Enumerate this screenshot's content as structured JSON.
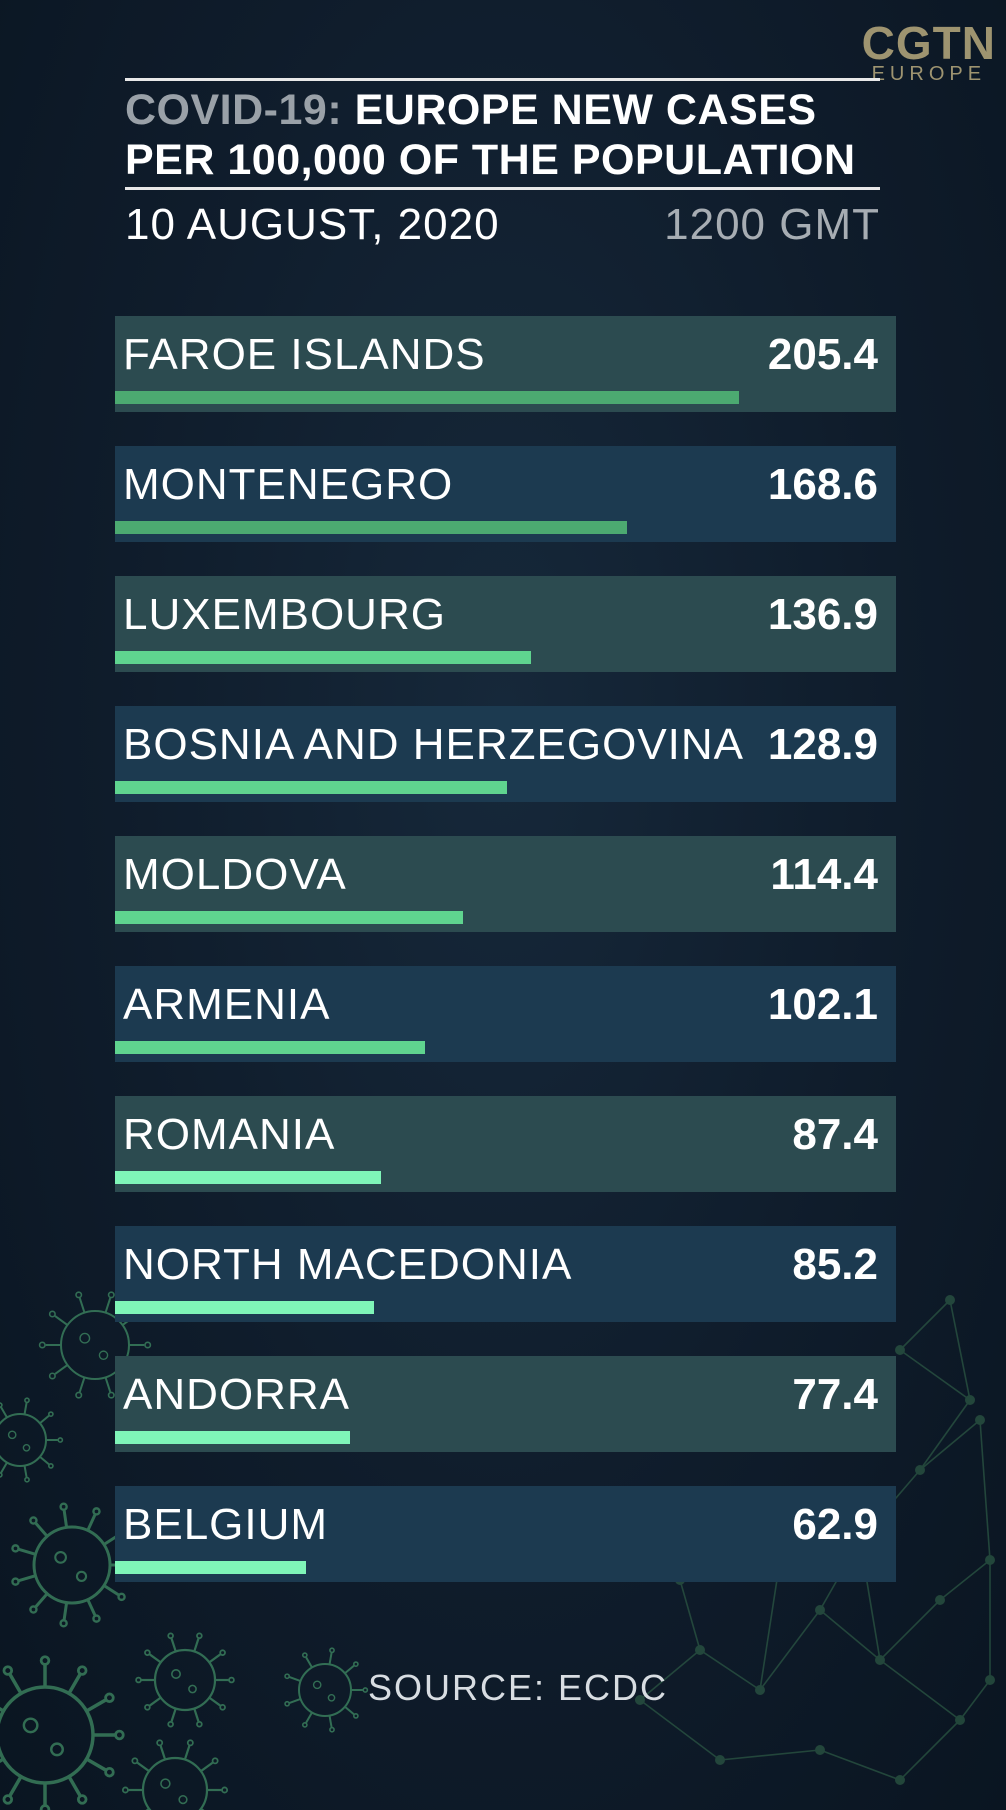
{
  "brand": {
    "name": "CGTN",
    "region": "EUROPE"
  },
  "header": {
    "title_prefix": "COVID-19:",
    "title_line1": "EUROPE NEW CASES",
    "title_line2": "PER 100,000 OF THE POPULATION",
    "date": "10 AUGUST, 2020",
    "time": "1200 GMT"
  },
  "colors": {
    "bar_shades": [
      "#4caa71",
      "#5fd48f",
      "#7ff5b8"
    ]
  },
  "chart_data": {
    "type": "bar",
    "orientation": "horizontal",
    "title": "COVID-19: EUROPE NEW CASES PER 100,000 OF THE POPULATION",
    "categories": [
      "FAROE ISLANDS",
      "MONTENEGRO",
      "LUXEMBOURG",
      "BOSNIA AND HERZEGOVINA",
      "MOLDOVA",
      "ARMENIA",
      "ROMANIA",
      "NORTH MACEDONIA",
      "ANDORRA",
      "BELGIUM"
    ],
    "values": [
      205.4,
      168.6,
      136.9,
      128.9,
      114.4,
      102.1,
      87.4,
      85.2,
      77.4,
      62.9
    ],
    "value_labels": [
      "205.4",
      "168.6",
      "136.9",
      "128.9",
      "114.4",
      "102.1",
      "87.4",
      "85.2",
      "77.4",
      "62.9"
    ]
  },
  "footer": {
    "source": "SOURCE: ECDC"
  }
}
